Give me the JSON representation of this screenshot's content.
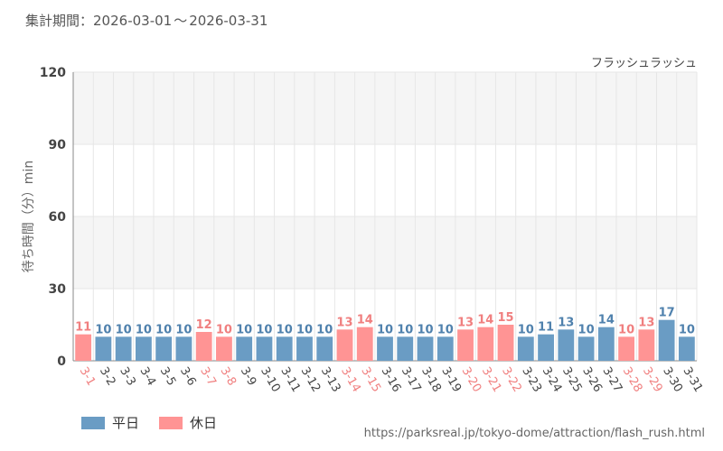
{
  "header": {
    "period_label": "集計期間：",
    "period_start": "2026-03-01",
    "period_sep": "～",
    "period_end": "2026-03-31"
  },
  "legend": {
    "weekday_label": "平日",
    "holiday_label": "休日"
  },
  "source_url": "https://parksreal.jp/tokyo-dome/attraction/flash_rush.html",
  "colors": {
    "weekday": "#6a9cc4",
    "holiday": "#ff9494",
    "weekday_text": "#4f81ad",
    "holiday_text": "#f07f7f",
    "axis_text": "#444444",
    "band": "#f5f5f5",
    "grid": "#e6e6e6"
  },
  "chart_data": {
    "type": "bar",
    "title": "フラッシュラッシュ",
    "ylabel": "待ち時間（分）min",
    "xlabel": "",
    "ylim": [
      0,
      120
    ],
    "yticks": [
      0,
      30,
      60,
      90,
      120
    ],
    "legend_position": "bottom-left",
    "grid": true,
    "categories": [
      "3-1",
      "3-2",
      "3-3",
      "3-4",
      "3-5",
      "3-6",
      "3-7",
      "3-8",
      "3-9",
      "3-10",
      "3-11",
      "3-12",
      "3-13",
      "3-14",
      "3-15",
      "3-16",
      "3-17",
      "3-18",
      "3-19",
      "3-20",
      "3-21",
      "3-22",
      "3-23",
      "3-24",
      "3-25",
      "3-26",
      "3-27",
      "3-28",
      "3-29",
      "3-30",
      "3-31"
    ],
    "values": [
      11,
      10,
      10,
      10,
      10,
      10,
      12,
      10,
      10,
      10,
      10,
      10,
      10,
      13,
      14,
      10,
      10,
      10,
      10,
      13,
      14,
      15,
      10,
      11,
      13,
      10,
      14,
      10,
      13,
      17,
      10
    ],
    "day_type": [
      "holiday",
      "weekday",
      "weekday",
      "weekday",
      "weekday",
      "weekday",
      "holiday",
      "holiday",
      "weekday",
      "weekday",
      "weekday",
      "weekday",
      "weekday",
      "holiday",
      "holiday",
      "weekday",
      "weekday",
      "weekday",
      "weekday",
      "holiday",
      "holiday",
      "holiday",
      "weekday",
      "weekday",
      "weekday",
      "weekday",
      "weekday",
      "holiday",
      "holiday",
      "weekday",
      "weekday"
    ]
  }
}
